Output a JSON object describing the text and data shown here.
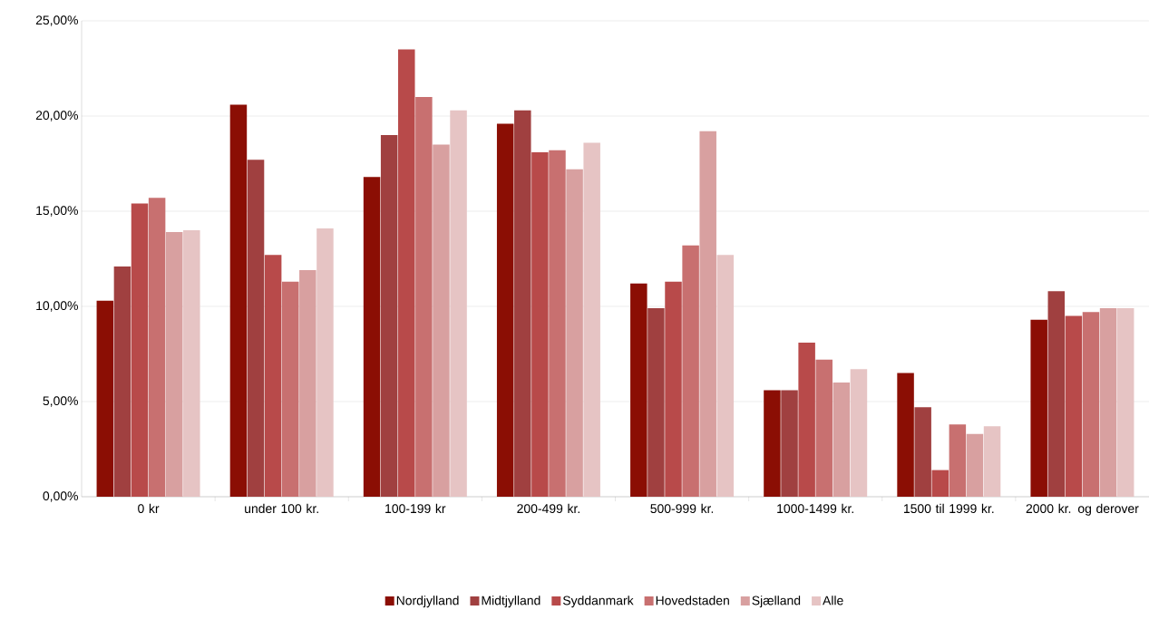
{
  "chart_data": {
    "type": "bar",
    "categories": [
      "0 kr",
      "under 100 kr.",
      "100-199 kr",
      "200-499 kr.",
      "500-999 kr.",
      "1000-1499 kr.",
      "1500 til 1999 kr.",
      "2000 kr. og derover"
    ],
    "series": [
      {
        "name": "Nordjylland",
        "color": "#8b0e04",
        "values": [
          10.3,
          20.6,
          16.8,
          19.6,
          11.2,
          5.6,
          6.5,
          9.3
        ]
      },
      {
        "name": "Midtjylland",
        "color": "#a04040",
        "values": [
          12.1,
          17.7,
          19.0,
          20.3,
          9.9,
          5.6,
          4.7,
          10.8
        ]
      },
      {
        "name": "Syddanmark",
        "color": "#b84a4a",
        "values": [
          15.4,
          12.7,
          23.5,
          18.1,
          11.3,
          8.1,
          1.4,
          9.5
        ]
      },
      {
        "name": "Hovedstaden",
        "color": "#c87070",
        "values": [
          15.7,
          11.3,
          21.0,
          18.2,
          13.2,
          7.2,
          3.8,
          9.7
        ]
      },
      {
        "name": "Sjælland",
        "color": "#d8a0a0",
        "values": [
          13.9,
          11.9,
          18.5,
          17.2,
          19.2,
          6.0,
          3.3,
          9.9
        ]
      },
      {
        "name": "Alle",
        "color": "#e6c4c4",
        "values": [
          14.0,
          14.1,
          20.3,
          18.6,
          12.7,
          6.7,
          3.7,
          9.9
        ]
      }
    ],
    "ylim": [
      0,
      25
    ],
    "yticks": [
      {
        "value": 0,
        "label": "0,00%"
      },
      {
        "value": 5,
        "label": "5,00%"
      },
      {
        "value": 10,
        "label": "10,00%"
      },
      {
        "value": 15,
        "label": "15,00%"
      },
      {
        "value": 20,
        "label": "20,00%"
      },
      {
        "value": 25,
        "label": "25,00%"
      }
    ],
    "grid": "y",
    "legend": "bottom"
  }
}
